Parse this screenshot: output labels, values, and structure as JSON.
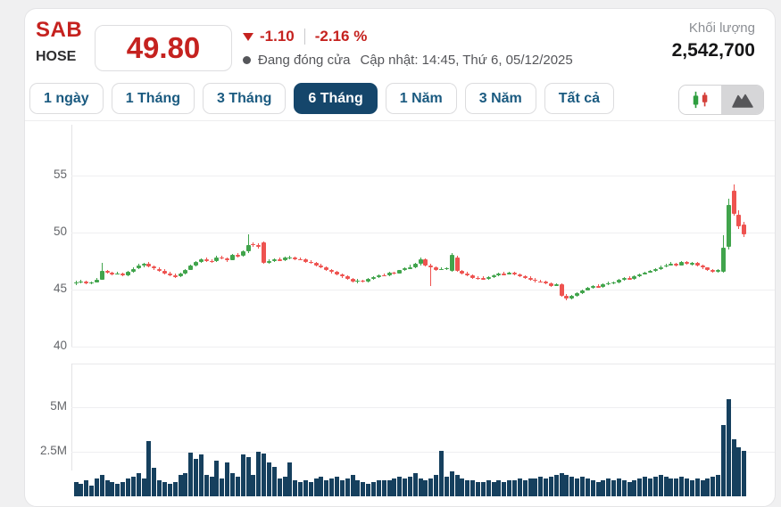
{
  "header": {
    "ticker": "SAB",
    "exchange": "HOSE",
    "price": "49.80",
    "change": "-1.10",
    "change_percent": "-2.16 %",
    "market_status": "Đang đóng cửa",
    "last_updated": "Cập nhật: 14:45, Thứ 6, 05/12/2025",
    "volume_label": "Khối lượng",
    "volume_value": "2,542,700"
  },
  "toolbar": {
    "ranges": [
      {
        "label": "1 ngày",
        "active": false
      },
      {
        "label": "1 Tháng",
        "active": false
      },
      {
        "label": "3 Tháng",
        "active": false
      },
      {
        "label": "6 Tháng",
        "active": true
      },
      {
        "label": "1 Năm",
        "active": false
      },
      {
        "label": "3 Năm",
        "active": false
      },
      {
        "label": "Tất cả",
        "active": false
      }
    ],
    "chart_type_toggle": [
      {
        "icon": "candlestick-icon",
        "selected": false
      },
      {
        "icon": "area-chart-icon",
        "selected": true
      }
    ]
  },
  "colors": {
    "accent_red": "#c5221f",
    "up_green": "#41a44c",
    "down_red": "#ee5350",
    "volume_bar": "#16405e",
    "active_tab_bg": "#15466b",
    "tab_text": "#1a5a80"
  },
  "chart_data": {
    "type": "candlestick",
    "title": "SAB 6 month price and volume chart",
    "price_axis": {
      "ticks": [
        55,
        50,
        45,
        40
      ],
      "ylim": [
        39.5,
        59.0
      ],
      "grid": true
    },
    "volume_axis": {
      "ticks": [
        {
          "label": "5M",
          "value_m": 5
        },
        {
          "label": "2.5M",
          "value_m": 2.5
        }
      ]
    },
    "last_close": 49.8,
    "last_volume": 2542700,
    "candles_format": [
      "open",
      "high",
      "low",
      "close",
      "volume_millions"
    ],
    "candles": [
      [
        45.55,
        45.75,
        45.35,
        45.6,
        0.8
      ],
      [
        45.6,
        45.8,
        45.5,
        45.7,
        0.7
      ],
      [
        45.7,
        45.75,
        45.4,
        45.5,
        0.9
      ],
      [
        45.5,
        45.7,
        45.4,
        45.6,
        0.6
      ],
      [
        45.6,
        45.95,
        45.55,
        45.85,
        1.0
      ],
      [
        45.85,
        47.3,
        45.8,
        46.6,
        1.2
      ],
      [
        46.6,
        46.7,
        46.35,
        46.45,
        0.9
      ],
      [
        46.45,
        46.55,
        46.2,
        46.3,
        0.8
      ],
      [
        46.3,
        46.5,
        46.25,
        46.4,
        0.7
      ],
      [
        46.4,
        46.45,
        46.1,
        46.2,
        0.8
      ],
      [
        46.2,
        46.6,
        46.15,
        46.5,
        1.0
      ],
      [
        46.5,
        46.9,
        46.45,
        46.8,
        1.1
      ],
      [
        46.8,
        47.2,
        46.75,
        47.1,
        1.3
      ],
      [
        47.1,
        47.3,
        46.95,
        47.2,
        1.0
      ],
      [
        47.2,
        47.35,
        46.9,
        47.0,
        3.1
      ],
      [
        47.0,
        47.1,
        46.7,
        46.8,
        1.6
      ],
      [
        46.8,
        46.9,
        46.5,
        46.6,
        0.9
      ],
      [
        46.6,
        46.75,
        46.3,
        46.4,
        0.8
      ],
      [
        46.4,
        46.5,
        46.1,
        46.2,
        0.7
      ],
      [
        46.2,
        46.35,
        46.0,
        46.1,
        0.8
      ],
      [
        46.1,
        46.45,
        46.05,
        46.35,
        1.2
      ],
      [
        46.35,
        46.8,
        46.3,
        46.7,
        1.3
      ],
      [
        46.7,
        47.15,
        46.65,
        47.05,
        2.45
      ],
      [
        47.05,
        47.5,
        47.0,
        47.4,
        2.1
      ],
      [
        47.4,
        47.7,
        47.3,
        47.6,
        2.35
      ],
      [
        47.6,
        47.75,
        47.4,
        47.5,
        1.2
      ],
      [
        47.5,
        47.6,
        47.3,
        47.45,
        1.1
      ],
      [
        47.45,
        47.9,
        47.4,
        47.8,
        2.0
      ],
      [
        47.8,
        47.95,
        47.6,
        47.7,
        1.0
      ],
      [
        47.7,
        47.8,
        47.4,
        47.55,
        1.9
      ],
      [
        47.55,
        48.1,
        47.5,
        48.0,
        1.3
      ],
      [
        48.0,
        48.15,
        47.8,
        47.9,
        1.1
      ],
      [
        47.9,
        48.4,
        47.85,
        48.3,
        2.35
      ],
      [
        48.3,
        49.8,
        48.2,
        48.9,
        2.2
      ],
      [
        48.95,
        49.1,
        48.7,
        48.85,
        1.2
      ],
      [
        48.85,
        49.0,
        48.55,
        48.7,
        2.5
      ],
      [
        49.1,
        49.2,
        47.2,
        47.3,
        2.4
      ],
      [
        47.3,
        47.6,
        47.2,
        47.5,
        1.9
      ],
      [
        47.5,
        47.7,
        47.4,
        47.6,
        1.65
      ],
      [
        47.6,
        47.75,
        47.45,
        47.55,
        1.0
      ],
      [
        47.55,
        47.85,
        47.5,
        47.75,
        1.1
      ],
      [
        47.75,
        47.9,
        47.6,
        47.8,
        1.9
      ],
      [
        47.8,
        47.85,
        47.55,
        47.65,
        0.9
      ],
      [
        47.65,
        47.8,
        47.5,
        47.6,
        0.8
      ],
      [
        47.6,
        47.7,
        47.3,
        47.4,
        0.9
      ],
      [
        47.4,
        47.55,
        47.2,
        47.3,
        0.8
      ],
      [
        47.3,
        47.4,
        47.0,
        47.1,
        1.0
      ],
      [
        47.1,
        47.2,
        46.8,
        46.9,
        1.1
      ],
      [
        46.9,
        47.0,
        46.6,
        46.7,
        0.9
      ],
      [
        46.7,
        46.8,
        46.4,
        46.5,
        1.0
      ],
      [
        46.5,
        46.6,
        46.2,
        46.3,
        1.1
      ],
      [
        46.3,
        46.4,
        46.0,
        46.1,
        0.9
      ],
      [
        46.1,
        46.2,
        45.8,
        45.9,
        1.0
      ],
      [
        45.9,
        46.0,
        45.55,
        45.7,
        1.2
      ],
      [
        45.7,
        45.9,
        45.55,
        45.75,
        0.9
      ],
      [
        45.75,
        45.85,
        45.55,
        45.65,
        0.8
      ],
      [
        45.65,
        45.95,
        45.6,
        45.9,
        0.7
      ],
      [
        45.9,
        46.1,
        45.85,
        46.05,
        0.8
      ],
      [
        46.05,
        46.3,
        46.0,
        46.25,
        0.9
      ],
      [
        46.25,
        46.35,
        46.1,
        46.2,
        0.9
      ],
      [
        46.2,
        46.5,
        46.15,
        46.45,
        0.9
      ],
      [
        46.45,
        46.55,
        46.3,
        46.4,
        1.0
      ],
      [
        46.4,
        46.7,
        46.35,
        46.65,
        1.1
      ],
      [
        46.65,
        46.9,
        46.6,
        46.85,
        1.0
      ],
      [
        46.85,
        47.15,
        46.8,
        46.9,
        1.1
      ],
      [
        46.9,
        47.3,
        46.85,
        47.2,
        1.3
      ],
      [
        47.2,
        47.75,
        47.1,
        47.6,
        1.0
      ],
      [
        47.6,
        47.7,
        47.0,
        47.1,
        0.9
      ],
      [
        47.1,
        47.25,
        45.3,
        46.9,
        1.0
      ],
      [
        46.9,
        47.0,
        46.6,
        46.7,
        1.2
      ],
      [
        46.7,
        46.9,
        46.65,
        46.8,
        2.55
      ],
      [
        46.8,
        46.95,
        46.7,
        46.85,
        1.1
      ],
      [
        46.6,
        48.2,
        46.5,
        48.0,
        1.4
      ],
      [
        47.8,
        47.9,
        46.5,
        46.6,
        1.2
      ],
      [
        46.6,
        46.7,
        46.3,
        46.4,
        1.0
      ],
      [
        46.4,
        46.5,
        46.1,
        46.2,
        0.9
      ],
      [
        46.2,
        46.3,
        45.9,
        46.0,
        0.9
      ],
      [
        46.0,
        46.15,
        45.85,
        45.95,
        0.8
      ],
      [
        45.95,
        46.1,
        45.8,
        45.9,
        0.8
      ],
      [
        45.9,
        46.15,
        45.85,
        46.05,
        0.9
      ],
      [
        46.05,
        46.3,
        46.0,
        46.2,
        0.8
      ],
      [
        46.2,
        46.45,
        46.15,
        46.35,
        0.9
      ],
      [
        46.35,
        46.5,
        46.2,
        46.3,
        0.8
      ],
      [
        46.3,
        46.55,
        46.25,
        46.45,
        0.9
      ],
      [
        46.45,
        46.5,
        46.2,
        46.3,
        0.9
      ],
      [
        46.3,
        46.4,
        46.05,
        46.15,
        1.0
      ],
      [
        46.15,
        46.25,
        45.9,
        46.0,
        0.9
      ],
      [
        46.0,
        46.1,
        45.75,
        45.85,
        1.0
      ],
      [
        45.85,
        45.95,
        45.6,
        45.7,
        1.0
      ],
      [
        45.7,
        45.85,
        45.55,
        45.65,
        1.1
      ],
      [
        45.65,
        45.75,
        45.4,
        45.5,
        1.0
      ],
      [
        45.5,
        45.6,
        45.2,
        45.3,
        1.1
      ],
      [
        45.3,
        45.55,
        45.25,
        45.45,
        1.2
      ],
      [
        45.45,
        45.5,
        44.3,
        44.4,
        1.3
      ],
      [
        44.4,
        44.6,
        44.05,
        44.2,
        1.2
      ],
      [
        44.2,
        44.5,
        44.1,
        44.4,
        1.1
      ],
      [
        44.4,
        44.75,
        44.35,
        44.65,
        1.0
      ],
      [
        44.65,
        45.0,
        44.6,
        44.9,
        1.1
      ],
      [
        44.9,
        45.2,
        44.85,
        45.1,
        1.0
      ],
      [
        45.1,
        45.35,
        45.05,
        45.25,
        0.9
      ],
      [
        45.25,
        45.4,
        45.1,
        45.2,
        0.8
      ],
      [
        45.2,
        45.5,
        45.15,
        45.4,
        0.9
      ],
      [
        45.4,
        45.65,
        45.35,
        45.55,
        1.0
      ],
      [
        45.55,
        45.7,
        45.45,
        45.6,
        0.9
      ],
      [
        45.6,
        45.9,
        45.55,
        45.8,
        1.0
      ],
      [
        45.8,
        46.05,
        45.75,
        45.95,
        0.9
      ],
      [
        45.95,
        46.1,
        45.8,
        45.9,
        0.8
      ],
      [
        45.9,
        46.2,
        45.85,
        46.1,
        0.9
      ],
      [
        46.1,
        46.4,
        46.05,
        46.3,
        1.0
      ],
      [
        46.3,
        46.55,
        46.25,
        46.45,
        1.1
      ],
      [
        46.45,
        46.7,
        46.4,
        46.6,
        1.0
      ],
      [
        46.6,
        46.85,
        46.55,
        46.75,
        1.1
      ],
      [
        46.75,
        47.05,
        46.7,
        46.95,
        1.2
      ],
      [
        46.95,
        47.2,
        46.9,
        47.1,
        1.1
      ],
      [
        47.1,
        47.35,
        47.05,
        47.25,
        1.0
      ],
      [
        47.25,
        47.3,
        47.0,
        47.1,
        1.0
      ],
      [
        47.1,
        47.5,
        47.05,
        47.4,
        1.1
      ],
      [
        47.4,
        47.45,
        47.15,
        47.25,
        1.0
      ],
      [
        47.25,
        47.4,
        47.1,
        47.3,
        0.9
      ],
      [
        47.3,
        47.35,
        46.95,
        47.05,
        1.0
      ],
      [
        47.05,
        47.15,
        46.8,
        46.9,
        0.9
      ],
      [
        46.9,
        46.95,
        46.6,
        46.7,
        1.0
      ],
      [
        46.7,
        46.8,
        46.45,
        46.55,
        1.1
      ],
      [
        46.55,
        46.75,
        46.45,
        46.65,
        1.2
      ],
      [
        46.5,
        49.7,
        46.4,
        48.6,
        4.0
      ],
      [
        48.7,
        52.9,
        48.5,
        52.4,
        5.45
      ],
      [
        53.6,
        54.2,
        51.4,
        51.6,
        3.2
      ],
      [
        51.5,
        51.9,
        50.3,
        50.5,
        2.75
      ],
      [
        50.7,
        50.9,
        49.6,
        49.8,
        2.54
      ]
    ]
  }
}
